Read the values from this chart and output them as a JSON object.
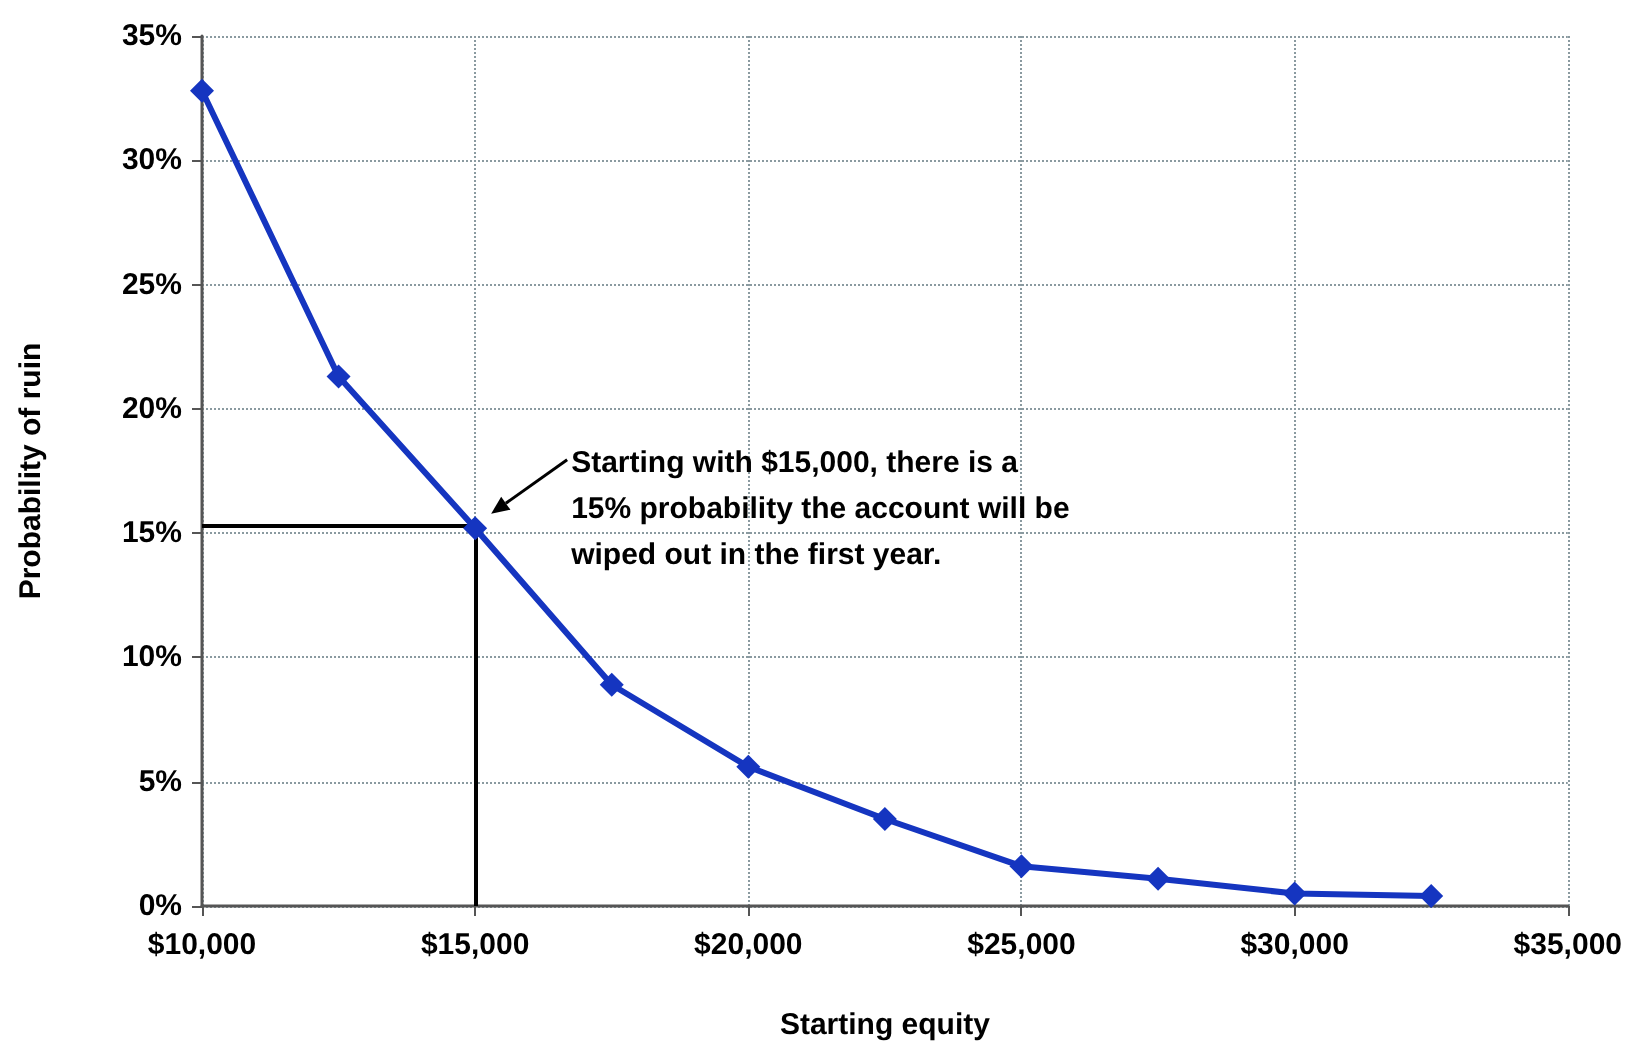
{
  "chart_data": {
    "type": "line",
    "xlabel": "Starting equity",
    "ylabel": "Probability of ruin",
    "x": [
      10000,
      12500,
      15000,
      17500,
      20000,
      22500,
      25000,
      27500,
      30000,
      32500
    ],
    "series": [
      {
        "color": "#1535c0",
        "values": [
          32.8,
          21.3,
          15.2,
          8.9,
          5.6,
          3.5,
          1.6,
          1.1,
          0.5,
          0.4
        ]
      }
    ],
    "xlim": [
      10000,
      35000
    ],
    "xticks": [
      {
        "value": 10000,
        "label": "$10,000"
      },
      {
        "value": 15000,
        "label": "$15,000"
      },
      {
        "value": 20000,
        "label": "$20,000"
      },
      {
        "value": 25000,
        "label": "$25,000"
      },
      {
        "value": 30000,
        "label": "$30,000"
      },
      {
        "value": 35000,
        "label": "$35,000"
      }
    ],
    "ylim": [
      0,
      35
    ],
    "yticks": [
      {
        "value": 0,
        "label": "0%"
      },
      {
        "value": 5,
        "label": "5%"
      },
      {
        "value": 10,
        "label": "10%"
      },
      {
        "value": 15,
        "label": "15%"
      },
      {
        "value": 20,
        "label": "20%"
      },
      {
        "value": 25,
        "label": "25%"
      },
      {
        "value": 30,
        "label": "30%"
      },
      {
        "value": 35,
        "label": "35%"
      }
    ],
    "grid": true,
    "marker": "diamond",
    "line_style": "solid",
    "ref_lines": [
      {
        "axis": "x",
        "value": 15000,
        "color": "#000000"
      },
      {
        "axis": "y",
        "value": 15.3,
        "color": "#000000"
      }
    ],
    "annotations": [
      "Starting with $15,000, there is a\n15% probability the account will be\nwiped out in the first year."
    ]
  }
}
